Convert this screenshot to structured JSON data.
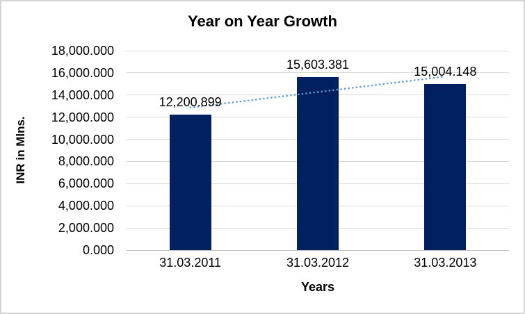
{
  "chart_data": {
    "type": "bar",
    "title": "Year on Year Growth",
    "xlabel": "Years",
    "ylabel": "INR in Mlns.",
    "categories": [
      "31.03.2011",
      "31.03.2012",
      "31.03.2013"
    ],
    "values": [
      12200.899,
      15603.381,
      15004.148
    ],
    "value_labels": [
      "12,200.899",
      "15,603.381",
      "15,004.148"
    ],
    "ylim": [
      0,
      18000
    ],
    "ytick_step": 2000,
    "ytick_labels": [
      "18,000.000",
      "16,000.000",
      "14,000.000",
      "12,000.000",
      "10,000.000",
      "8,000.000",
      "6,000.000",
      "4,000.000",
      "2,000.000",
      "0.000"
    ],
    "grid": true,
    "legend": "none",
    "bar_color": "#002060",
    "gridline_color": "#d9d9d9",
    "axis_line_color": "#bfbfbf",
    "text_color": "#000000",
    "trendline": {
      "type": "linear",
      "style": "dotted",
      "color": "#5b9bd5"
    }
  }
}
